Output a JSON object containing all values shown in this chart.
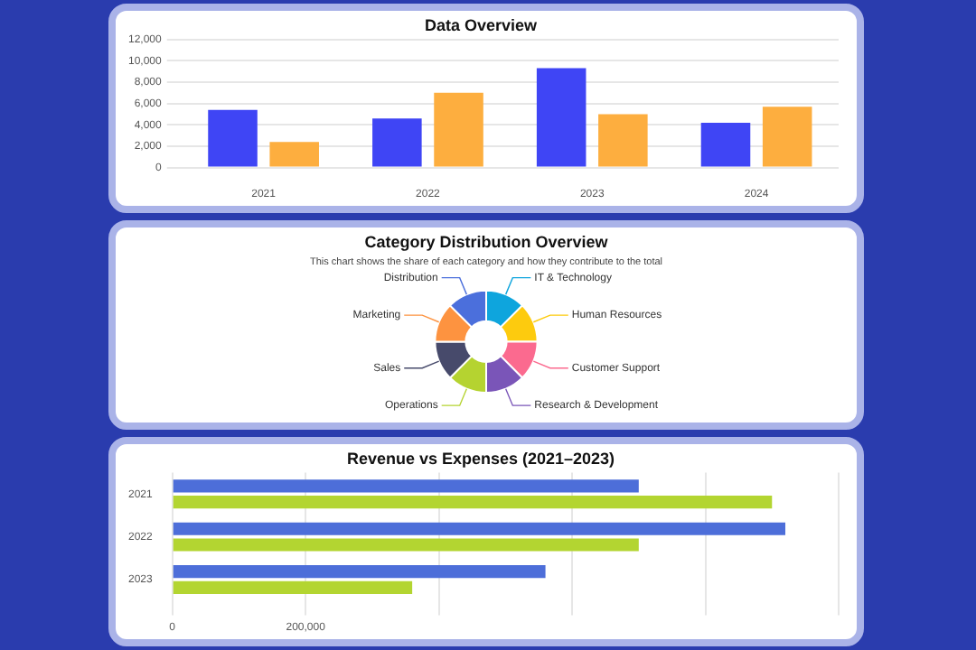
{
  "chart_data": [
    {
      "type": "bar",
      "title": "Data Overview",
      "categories": [
        "2021",
        "2022",
        "2023",
        "2024"
      ],
      "series": [
        {
          "color": "#3f45f5",
          "values": [
            5400,
            4600,
            9300,
            4200
          ]
        },
        {
          "color": "#fdae3f",
          "values": [
            2400,
            7000,
            5000,
            5700
          ]
        }
      ],
      "ylim": [
        0,
        12000
      ],
      "yticks": [
        {
          "value": 0,
          "label": "0"
        },
        {
          "value": 2000,
          "label": "2,000"
        },
        {
          "value": 4000,
          "label": "4,000"
        },
        {
          "value": 6000,
          "label": "6,000"
        },
        {
          "value": 8000,
          "label": "8,000"
        },
        {
          "value": 10000,
          "label": "10,000"
        },
        {
          "value": 12000,
          "label": "12,000"
        }
      ],
      "grid": "y",
      "legend": false
    },
    {
      "type": "donut",
      "title": "Category Distribution Overview",
      "subtitle": "This chart shows the share of each category and how they contribute to the total",
      "categories": [
        "IT & Technology",
        "Human Resources",
        "Customer Support",
        "Research & Development",
        "Operations",
        "Sales",
        "Marketing",
        "Distribution"
      ],
      "values": [
        12.5,
        12.5,
        12.5,
        12.5,
        12.5,
        12.5,
        12.5,
        12.5
      ],
      "colors": [
        "#0ea5dd",
        "#fdcb0e",
        "#fb6a8f",
        "#7a55b8",
        "#b5d330",
        "#474a6b",
        "#fd9340",
        "#4b6fdc"
      ],
      "legend": false
    },
    {
      "type": "bar",
      "orientation": "horizontal",
      "title": "Revenue vs Expenses (2021–2023)",
      "categories": [
        "2021",
        "2022",
        "2023"
      ],
      "series": [
        {
          "color": "#4d6ed9",
          "values": [
            700000,
            920000,
            560000
          ]
        },
        {
          "color": "#b3d531",
          "values": [
            900000,
            700000,
            360000
          ]
        }
      ],
      "xlim": [
        0,
        1000000
      ],
      "xticks": [
        {
          "value": 0,
          "label": "0"
        },
        {
          "value": 200000,
          "label": "200,000"
        },
        {
          "value": 400000,
          "label": null
        },
        {
          "value": 600000,
          "label": null
        },
        {
          "value": 800000,
          "label": null
        },
        {
          "value": 1000000,
          "label": null
        }
      ],
      "grid": "x",
      "legend": false
    }
  ]
}
